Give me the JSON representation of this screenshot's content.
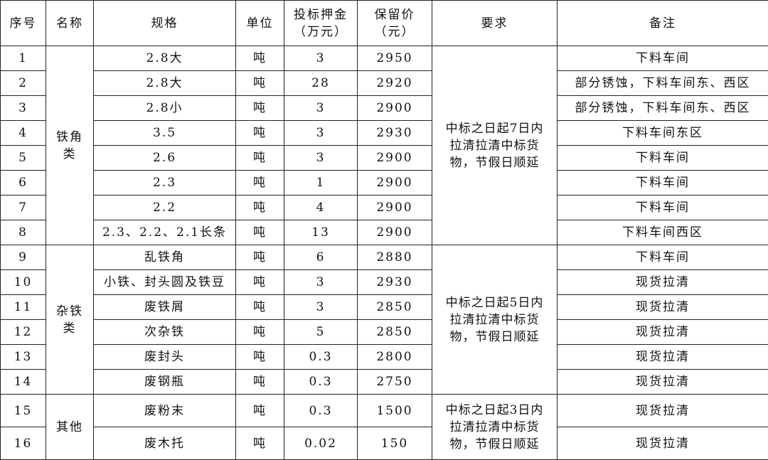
{
  "headers": [
    {
      "lines": [
        "序号"
      ]
    },
    {
      "lines": [
        "名称"
      ]
    },
    {
      "lines": [
        "规格"
      ]
    },
    {
      "lines": [
        "单位"
      ]
    },
    {
      "lines": [
        "投标押金",
        "（万元）"
      ]
    },
    {
      "lines": [
        "保留价",
        "（元）"
      ]
    },
    {
      "lines": [
        "要求"
      ]
    },
    {
      "lines": [
        "备注"
      ]
    }
  ],
  "groups": [
    {
      "name_lines": [
        "铁角",
        "类"
      ],
      "requirement_lines": [
        "中标之日起7日内",
        "拉清拉清中标货",
        "物，节假日顺延"
      ],
      "rows": [
        {
          "no": "1",
          "spec": "2.8大",
          "unit": "吨",
          "deposit": "3",
          "price": "2950",
          "note": "下料车间"
        },
        {
          "no": "2",
          "spec": "2.8大",
          "unit": "吨",
          "deposit": "28",
          "price": "2920",
          "note": "部分锈蚀，下料车间东、西区"
        },
        {
          "no": "3",
          "spec": "2.8小",
          "unit": "吨",
          "deposit": "3",
          "price": "2900",
          "note": "部分锈蚀，下料车间东、西区"
        },
        {
          "no": "4",
          "spec": "3.5",
          "unit": "吨",
          "deposit": "3",
          "price": "2930",
          "note": "下料车间东区"
        },
        {
          "no": "5",
          "spec": "2.6",
          "unit": "吨",
          "deposit": "3",
          "price": "2900",
          "note": "下料车间"
        },
        {
          "no": "6",
          "spec": "2.3",
          "unit": "吨",
          "deposit": "1",
          "price": "2900",
          "note": "下料车间"
        },
        {
          "no": "7",
          "spec": "2.2",
          "unit": "吨",
          "deposit": "4",
          "price": "2900",
          "note": "下料车间"
        },
        {
          "no": "8",
          "spec": "2.3、2.2、2.1长条",
          "unit": "吨",
          "deposit": "13",
          "price": "2900",
          "note": "下料车间西区"
        }
      ]
    },
    {
      "name_lines": [
        "杂铁",
        "类"
      ],
      "requirement_lines": [
        "中标之日起5日内",
        "拉清拉清中标货",
        "物，节假日顺延"
      ],
      "rows": [
        {
          "no": "9",
          "spec": "乱铁角",
          "unit": "吨",
          "deposit": "6",
          "price": "2880",
          "note": "下料车间"
        },
        {
          "no": "10",
          "spec": "小铁、封头圆及铁豆",
          "unit": "吨",
          "deposit": "3",
          "price": "2930",
          "note": "现货拉清"
        },
        {
          "no": "11",
          "spec": "废铁屑",
          "unit": "吨",
          "deposit": "3",
          "price": "2850",
          "note": "现货拉清"
        },
        {
          "no": "12",
          "spec": "次杂铁",
          "unit": "吨",
          "deposit": "5",
          "price": "2850",
          "note": "现货拉清"
        },
        {
          "no": "13",
          "spec": "废封头",
          "unit": "吨",
          "deposit": "0.3",
          "price": "2800",
          "note": "现货拉清"
        },
        {
          "no": "14",
          "spec": "废钢瓶",
          "unit": "吨",
          "deposit": "0.3",
          "price": "2750",
          "note": "现货拉清"
        }
      ]
    },
    {
      "name_lines": [
        "其他"
      ],
      "requirement_lines": [
        "中标之日起3日内",
        "拉清拉清中标货",
        "物，节假日顺延"
      ],
      "tall": true,
      "rows": [
        {
          "no": "15",
          "spec": "废粉末",
          "unit": "吨",
          "deposit": "0.3",
          "price": "1500",
          "note": "现货拉清"
        },
        {
          "no": "16",
          "spec": "废木托",
          "unit": "吨",
          "deposit": "0.02",
          "price": "150",
          "note": "现货拉清"
        }
      ]
    }
  ]
}
